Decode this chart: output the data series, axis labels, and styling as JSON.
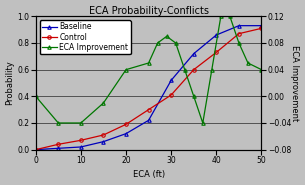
{
  "title": "ECA Probability-Conflicts",
  "xlabel": "ECA (ft)",
  "ylabel_left": "Probability",
  "ylabel_right": "ECA Improvement",
  "background_color": "#c0c0c0",
  "x_baseline": [
    0,
    5,
    10,
    15,
    20,
    25,
    30,
    35,
    40,
    45,
    50
  ],
  "y_baseline": [
    0.0,
    0.01,
    0.02,
    0.06,
    0.12,
    0.22,
    0.52,
    0.72,
    0.86,
    0.93,
    0.93
  ],
  "x_control": [
    0,
    5,
    10,
    15,
    20,
    25,
    30,
    35,
    40,
    45,
    50
  ],
  "y_control": [
    0.0,
    0.04,
    0.07,
    0.11,
    0.19,
    0.3,
    0.41,
    0.6,
    0.73,
    0.87,
    0.91
  ],
  "x_eca": [
    0,
    5,
    10,
    15,
    20,
    25,
    27,
    29,
    31,
    33,
    35,
    37,
    39,
    41,
    43,
    45,
    47,
    50
  ],
  "y_eca": [
    0.0,
    -0.04,
    -0.04,
    -0.01,
    0.04,
    0.05,
    0.08,
    0.09,
    0.08,
    0.04,
    0.0,
    -0.04,
    0.04,
    0.12,
    0.12,
    0.08,
    0.05,
    0.04
  ],
  "baseline_color": "#0000bb",
  "control_color": "#cc0000",
  "eca_color": "#007700",
  "xlim": [
    0,
    50
  ],
  "ylim_left": [
    0.0,
    1.0
  ],
  "ylim_right": [
    -0.08,
    0.12
  ],
  "yticks_right": [
    -0.08,
    -0.04,
    0.0,
    0.04,
    0.08,
    0.12
  ],
  "yticks_left": [
    0.0,
    0.2,
    0.4,
    0.6,
    0.8,
    1.0
  ],
  "xticks": [
    0,
    10,
    20,
    30,
    40,
    50
  ],
  "title_fontsize": 7,
  "axis_fontsize": 6,
  "tick_fontsize": 5.5,
  "legend_fontsize": 5.5,
  "linewidth": 0.9,
  "markersize": 2.5
}
